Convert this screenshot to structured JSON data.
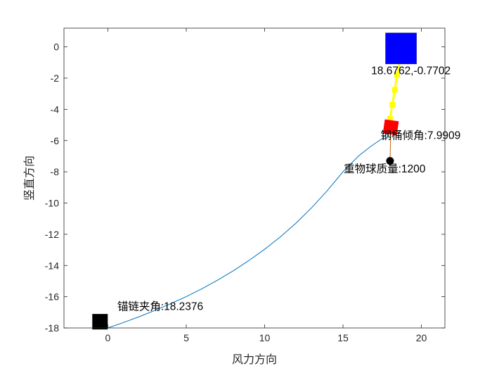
{
  "chart_data": {
    "type": "line",
    "title": "",
    "xlabel": "风力方向",
    "ylabel": "竖直方向",
    "xlim": [
      -2.8,
      21.5
    ],
    "ylim": [
      -18,
      1.2
    ],
    "xticks": [
      0,
      5,
      10,
      15,
      20
    ],
    "yticks": [
      0,
      -2,
      -4,
      -6,
      -8,
      -10,
      -12,
      -14,
      -16,
      -18
    ],
    "grid": false,
    "colors": {
      "curve": "#0072BD",
      "buoy": "#0000FF",
      "chain": "#FFFF00",
      "drum": "#FF0000",
      "ball": "#000000",
      "anchor": "#000000",
      "axes": "#262626"
    },
    "series": [
      {
        "values_x": [
          0,
          1,
          2,
          3,
          4,
          5,
          6,
          7,
          8,
          9,
          10,
          11,
          12,
          13,
          14,
          15,
          16,
          16.8,
          17.5,
          17.9
        ],
        "values_y": [
          -18,
          -17.65,
          -17.28,
          -16.88,
          -16.45,
          -15.99,
          -15.49,
          -14.94,
          -14.34,
          -13.68,
          -12.96,
          -12.17,
          -11.29,
          -10.3,
          -9.2,
          -8.0,
          -6.98,
          -6.35,
          -5.87,
          -5.45
        ]
      }
    ],
    "markers": {
      "buoy": {
        "x": 18.7,
        "y": -0.1
      },
      "chain_points": [
        {
          "x": 18.6762,
          "y": -0.7702
        },
        {
          "x": 18.45,
          "y": -1.8
        },
        {
          "x": 18.3,
          "y": -2.75
        },
        {
          "x": 18.15,
          "y": -3.7
        },
        {
          "x": 18.0,
          "y": -4.6
        }
      ],
      "drum": {
        "x": 18.05,
        "y": -5.15
      },
      "ball": {
        "x": 18.0,
        "y": -7.3
      },
      "anchor": {
        "x": -0.5,
        "y": -17.6
      }
    },
    "annotations": [
      {
        "text": "18.6762,-0.7702",
        "x": 16.8,
        "y": -1.75
      },
      {
        "text": "钢桶倾角:7.9909",
        "x": 17.4,
        "y": -5.9
      },
      {
        "text": "重物球质量:1200",
        "x": 15.05,
        "y": -8.05
      },
      {
        "text": "锚链夹角:18.2376",
        "x": 0.6,
        "y": -16.85
      }
    ]
  }
}
